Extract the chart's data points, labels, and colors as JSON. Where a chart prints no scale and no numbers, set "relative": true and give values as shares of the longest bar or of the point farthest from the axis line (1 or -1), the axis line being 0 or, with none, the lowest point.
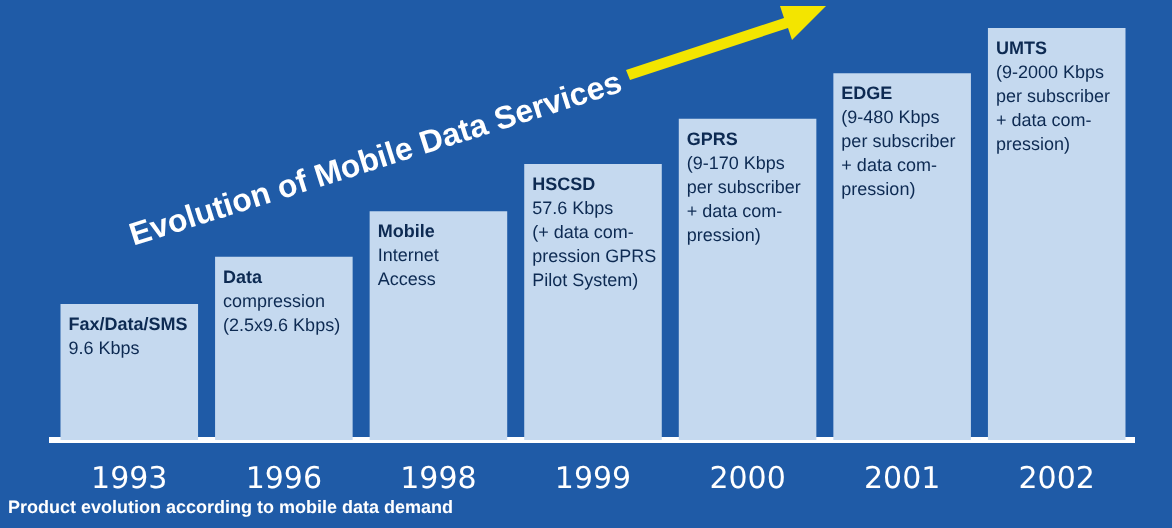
{
  "chart_data": {
    "type": "bar",
    "relative": true,
    "title": "Evolution of Mobile Data Services",
    "categories": [
      "1993",
      "1996",
      "1998",
      "1999",
      "2000",
      "2001",
      "2002"
    ],
    "values": [
      0.33,
      0.445,
      0.555,
      0.67,
      0.78,
      0.89,
      1
    ],
    "color": "#c5d9ef",
    "annotations": [
      {
        "text": "Fax/Data/SMS\n9.6 Kbps",
        "x": "1993",
        "y": 0.33
      },
      {
        "text": "Data\ncompression\n(2.5x9.6 Kbps)",
        "x": "1996",
        "y": 0.445
      },
      {
        "text": "Mobile\nInternet\nAccess",
        "x": "1998",
        "y": 0.555
      },
      {
        "text": "HSCSD\n57.6 Kbps\n(+ data com-\npression GPRS\nPilot System)",
        "x": "1999",
        "y": 0.67
      },
      {
        "text": "GPRS\n(9-170 Kbps\nper subscriber\n+ data com-\npression)",
        "x": "2000",
        "y": 0.78
      },
      {
        "text": "EDGE\n(9-480 Kbps\nper subscriber\n+ data com-\npression)",
        "x": "2001",
        "y": 0.89
      },
      {
        "text": "UMTS\n(9-2000 Kbps\nper subscriber\n+ data com-\npression)",
        "x": "2002",
        "y": 1
      },
      "Product evolution according to mobile data demand"
    ],
    "grid": false,
    "legend": false
  }
}
